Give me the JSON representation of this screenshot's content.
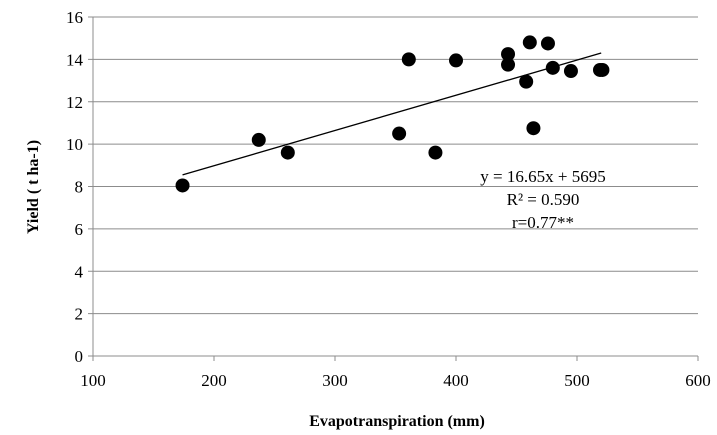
{
  "chart_data": {
    "type": "scatter",
    "xlabel": "Evapotranspiration (mm)",
    "ylabel": "Yield ( t ha-1)",
    "xlim": [
      100,
      600
    ],
    "ylim": [
      0,
      16
    ],
    "x_ticks": [
      100,
      200,
      300,
      400,
      500,
      600
    ],
    "y_ticks": [
      0,
      2,
      4,
      6,
      8,
      10,
      12,
      14,
      16
    ],
    "grid": "horizontal",
    "points": [
      {
        "x": 174,
        "y": 8.05
      },
      {
        "x": 237,
        "y": 10.2
      },
      {
        "x": 261,
        "y": 9.6
      },
      {
        "x": 353,
        "y": 10.5
      },
      {
        "x": 361,
        "y": 14.0
      },
      {
        "x": 383,
        "y": 9.6
      },
      {
        "x": 400,
        "y": 13.95
      },
      {
        "x": 443,
        "y": 14.25
      },
      {
        "x": 443,
        "y": 13.75
      },
      {
        "x": 458,
        "y": 12.95
      },
      {
        "x": 461,
        "y": 14.8
      },
      {
        "x": 464,
        "y": 10.75
      },
      {
        "x": 476,
        "y": 14.75
      },
      {
        "x": 480,
        "y": 13.6
      },
      {
        "x": 495,
        "y": 13.45
      },
      {
        "x": 519,
        "y": 13.5
      },
      {
        "x": 521,
        "y": 13.5
      }
    ],
    "trendline": {
      "x": [
        174,
        520
      ],
      "y": [
        8.55,
        14.3
      ]
    },
    "annotations": [
      "y = 16.65x + 5695",
      "R² = 0.590",
      "r=0.77**"
    ]
  }
}
